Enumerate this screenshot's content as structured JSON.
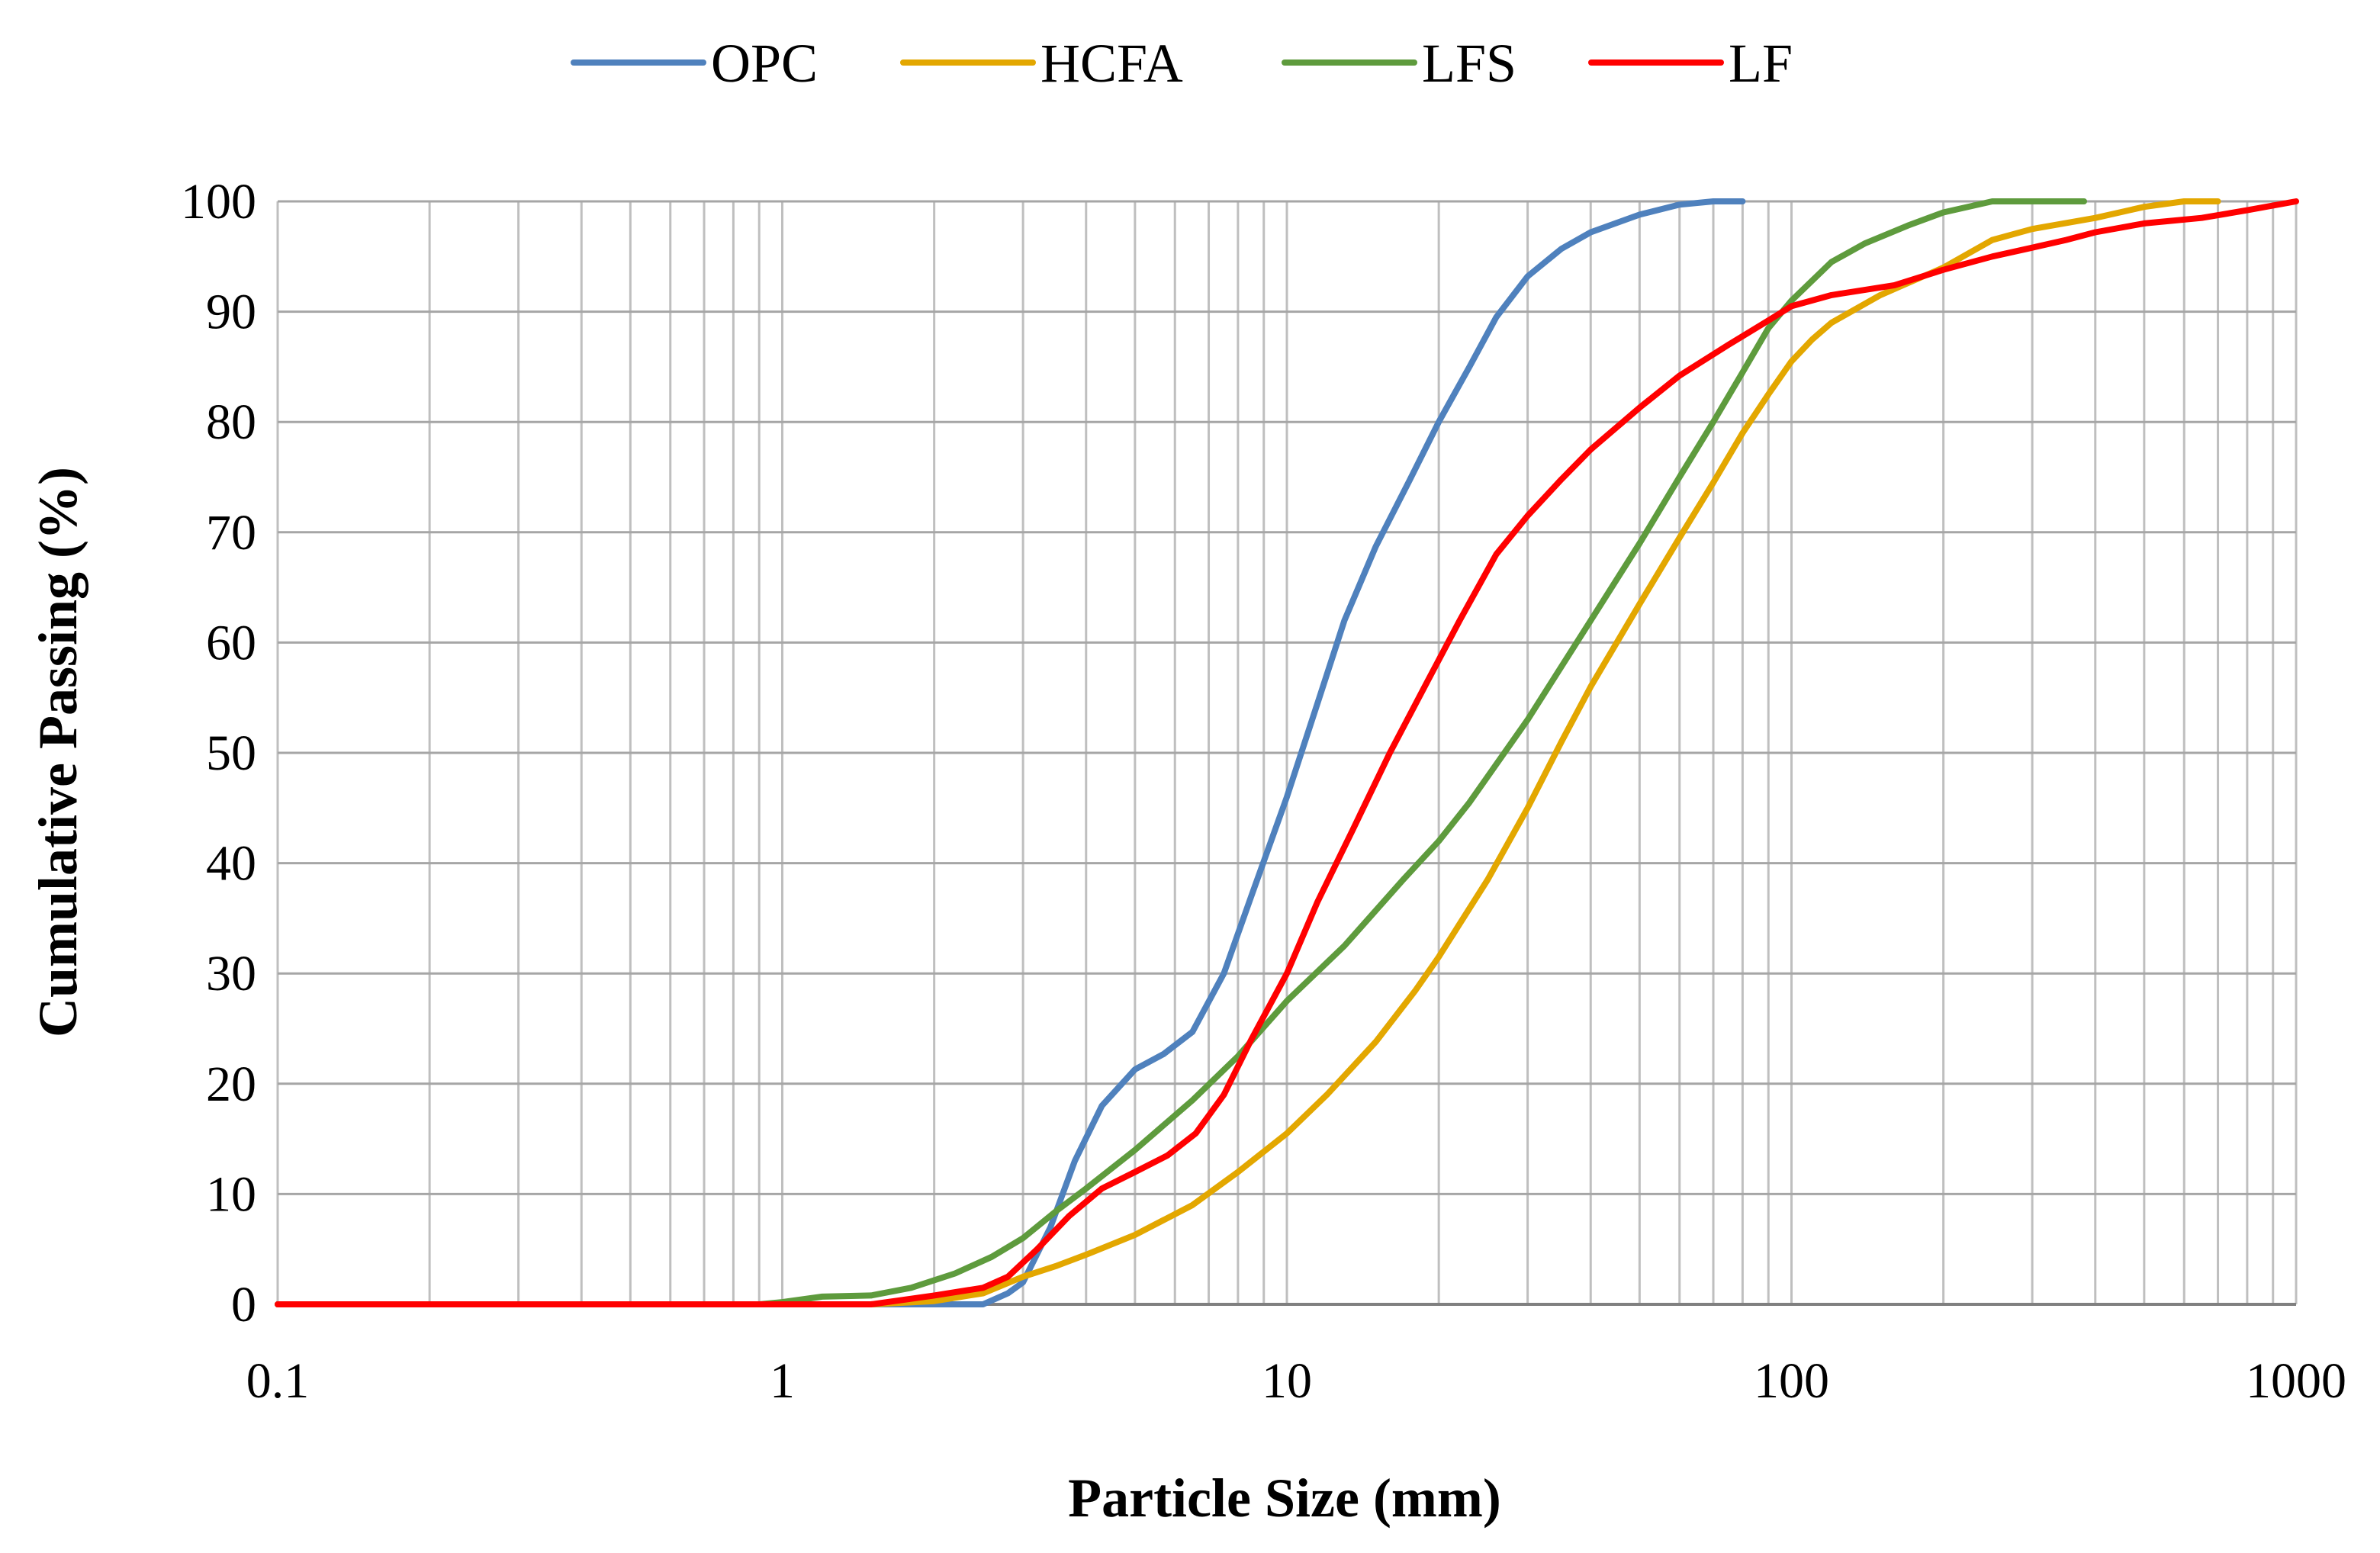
{
  "chart_data": {
    "type": "line",
    "title": "",
    "xlabel": "Particle Size (mm)",
    "ylabel": "Cumulative Passing (%)",
    "xscale": "log",
    "xlim": [
      0.1,
      1000
    ],
    "ylim": [
      0,
      100
    ],
    "x_ticks": [
      0.1,
      1,
      10,
      100,
      1000
    ],
    "x_tick_labels": [
      "0.1",
      "1",
      "10",
      "100",
      "1000"
    ],
    "y_ticks": [
      0,
      10,
      20,
      30,
      40,
      50,
      60,
      70,
      80,
      90,
      100
    ],
    "y_tick_labels": [
      "0",
      "10",
      "20",
      "30",
      "40",
      "50",
      "60",
      "70",
      "80",
      "90",
      "100"
    ],
    "grid": true,
    "legend_position": "top-center",
    "series": [
      {
        "name": "OPC",
        "color": "#4F81BD",
        "points": [
          [
            0.1,
            0
          ],
          [
            1,
            0
          ],
          [
            2,
            0
          ],
          [
            2.5,
            0
          ],
          [
            2.8,
            1
          ],
          [
            3,
            2
          ],
          [
            3.4,
            7
          ],
          [
            3.8,
            13
          ],
          [
            4.3,
            18
          ],
          [
            5,
            21.3
          ],
          [
            5.7,
            22.7
          ],
          [
            6.5,
            24.7
          ],
          [
            7.5,
            30
          ],
          [
            8.5,
            37
          ],
          [
            10,
            46
          ],
          [
            11.5,
            54.5
          ],
          [
            13,
            62
          ],
          [
            15,
            68.7
          ],
          [
            17.5,
            74.7
          ],
          [
            20,
            80
          ],
          [
            23,
            85
          ],
          [
            26,
            89.5
          ],
          [
            30,
            93.2
          ],
          [
            35,
            95.7
          ],
          [
            40,
            97.2
          ],
          [
            50,
            98.8
          ],
          [
            60,
            99.7
          ],
          [
            70,
            100
          ],
          [
            80,
            100
          ]
        ]
      },
      {
        "name": "HCFA",
        "color": "#E3A700",
        "points": [
          [
            0.1,
            0
          ],
          [
            1,
            0
          ],
          [
            1.5,
            0
          ],
          [
            2,
            0.3
          ],
          [
            2.5,
            1
          ],
          [
            3,
            2.5
          ],
          [
            3.5,
            3.5
          ],
          [
            4,
            4.5
          ],
          [
            5,
            6.3
          ],
          [
            6.5,
            9
          ],
          [
            8,
            12
          ],
          [
            10,
            15.5
          ],
          [
            12,
            19
          ],
          [
            15,
            23.8
          ],
          [
            18,
            28.5
          ],
          [
            20,
            31.5
          ],
          [
            25,
            38.5
          ],
          [
            30,
            45
          ],
          [
            35,
            51
          ],
          [
            40,
            56
          ],
          [
            50,
            63.5
          ],
          [
            60,
            69.5
          ],
          [
            70,
            74.5
          ],
          [
            80,
            79
          ],
          [
            90,
            82.5
          ],
          [
            100,
            85.5
          ],
          [
            110,
            87.5
          ],
          [
            120,
            89
          ],
          [
            150,
            91.5
          ],
          [
            200,
            94
          ],
          [
            250,
            96.5
          ],
          [
            300,
            97.5
          ],
          [
            400,
            98.5
          ],
          [
            500,
            99.5
          ],
          [
            600,
            100
          ],
          [
            700,
            100
          ]
        ]
      },
      {
        "name": "LFS",
        "color": "#5E9B3D",
        "points": [
          [
            0.1,
            0
          ],
          [
            0.9,
            0
          ],
          [
            1,
            0.2
          ],
          [
            1.2,
            0.7
          ],
          [
            1.5,
            0.8
          ],
          [
            1.8,
            1.5
          ],
          [
            2.2,
            2.8
          ],
          [
            2.6,
            4.3
          ],
          [
            3,
            6
          ],
          [
            3.5,
            8.5
          ],
          [
            4,
            10.5
          ],
          [
            5,
            14
          ],
          [
            6.5,
            18.5
          ],
          [
            8,
            22.5
          ],
          [
            10,
            27.5
          ],
          [
            13,
            32.5
          ],
          [
            17,
            38.5
          ],
          [
            20,
            42
          ],
          [
            23,
            45.5
          ],
          [
            30,
            53
          ],
          [
            40,
            62
          ],
          [
            50,
            69
          ],
          [
            60,
            75
          ],
          [
            70,
            80
          ],
          [
            80,
            84.5
          ],
          [
            90,
            88.5
          ],
          [
            100,
            91
          ],
          [
            120,
            94.5
          ],
          [
            140,
            96.2
          ],
          [
            170,
            97.8
          ],
          [
            200,
            99
          ],
          [
            250,
            100
          ],
          [
            300,
            100
          ],
          [
            380,
            100
          ]
        ]
      },
      {
        "name": "LF",
        "color": "#FF0000",
        "points": [
          [
            0.1,
            0
          ],
          [
            1,
            0
          ],
          [
            1.5,
            0
          ],
          [
            2,
            0.8
          ],
          [
            2.5,
            1.5
          ],
          [
            2.8,
            2.5
          ],
          [
            3.2,
            5
          ],
          [
            3.7,
            8
          ],
          [
            4.3,
            10.5
          ],
          [
            5,
            12
          ],
          [
            5.8,
            13.5
          ],
          [
            6.6,
            15.5
          ],
          [
            7.5,
            19
          ],
          [
            8.5,
            24
          ],
          [
            10,
            30
          ],
          [
            11.5,
            36.5
          ],
          [
            13.5,
            43
          ],
          [
            16,
            50
          ],
          [
            19,
            56.5
          ],
          [
            22,
            62
          ],
          [
            26,
            68
          ],
          [
            30,
            71.5
          ],
          [
            35,
            74.8
          ],
          [
            40,
            77.5
          ],
          [
            50,
            81.3
          ],
          [
            60,
            84.2
          ],
          [
            75,
            87
          ],
          [
            90,
            89.2
          ],
          [
            100,
            90.5
          ],
          [
            120,
            91.5
          ],
          [
            160,
            92.4
          ],
          [
            200,
            93.8
          ],
          [
            250,
            95
          ],
          [
            300,
            95.8
          ],
          [
            350,
            96.5
          ],
          [
            400,
            97.2
          ],
          [
            500,
            98
          ],
          [
            650,
            98.5
          ],
          [
            800,
            99.2
          ],
          [
            1000,
            100
          ]
        ]
      }
    ]
  }
}
